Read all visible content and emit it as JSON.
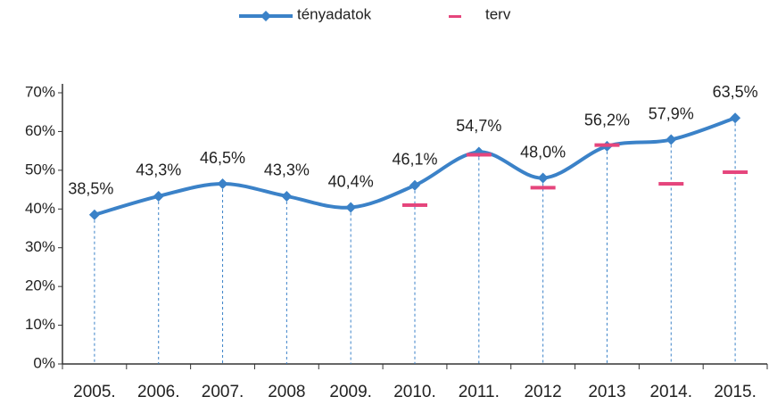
{
  "chart_data": {
    "type": "line",
    "categories": [
      "2005.",
      "2006.",
      "2007.",
      "2008",
      "2009.",
      "2010.",
      "2011.",
      "2012",
      "2013",
      "2014.",
      "2015."
    ],
    "series": [
      {
        "name": "tényadatok",
        "color": "#3b82c8",
        "values": [
          38.5,
          43.3,
          46.5,
          43.3,
          40.4,
          46.1,
          54.7,
          48.0,
          56.2,
          57.9,
          63.5
        ],
        "value_labels": [
          "38,5%",
          "43,3%",
          "46,5%",
          "43,3%",
          "40,4%",
          "46,1%",
          "54,7%",
          "48,0%",
          "56,2%",
          "57,9%",
          "63,5%"
        ]
      },
      {
        "name": "terv",
        "color": "#e5457c",
        "values": [
          null,
          null,
          null,
          null,
          null,
          41,
          54,
          45.5,
          56.5,
          46.5,
          49.5
        ]
      }
    ],
    "ylim": [
      0,
      70
    ],
    "yticks": [
      {
        "value": 0,
        "label": "0%"
      },
      {
        "value": 10,
        "label": "10%"
      },
      {
        "value": 20,
        "label": "20%"
      },
      {
        "value": 30,
        "label": "30%"
      },
      {
        "value": 40,
        "label": "40%"
      },
      {
        "value": 50,
        "label": "50%"
      },
      {
        "value": 60,
        "label": "60%"
      },
      {
        "value": 70,
        "label": "70%"
      }
    ],
    "grid": false,
    "legend": "top"
  }
}
